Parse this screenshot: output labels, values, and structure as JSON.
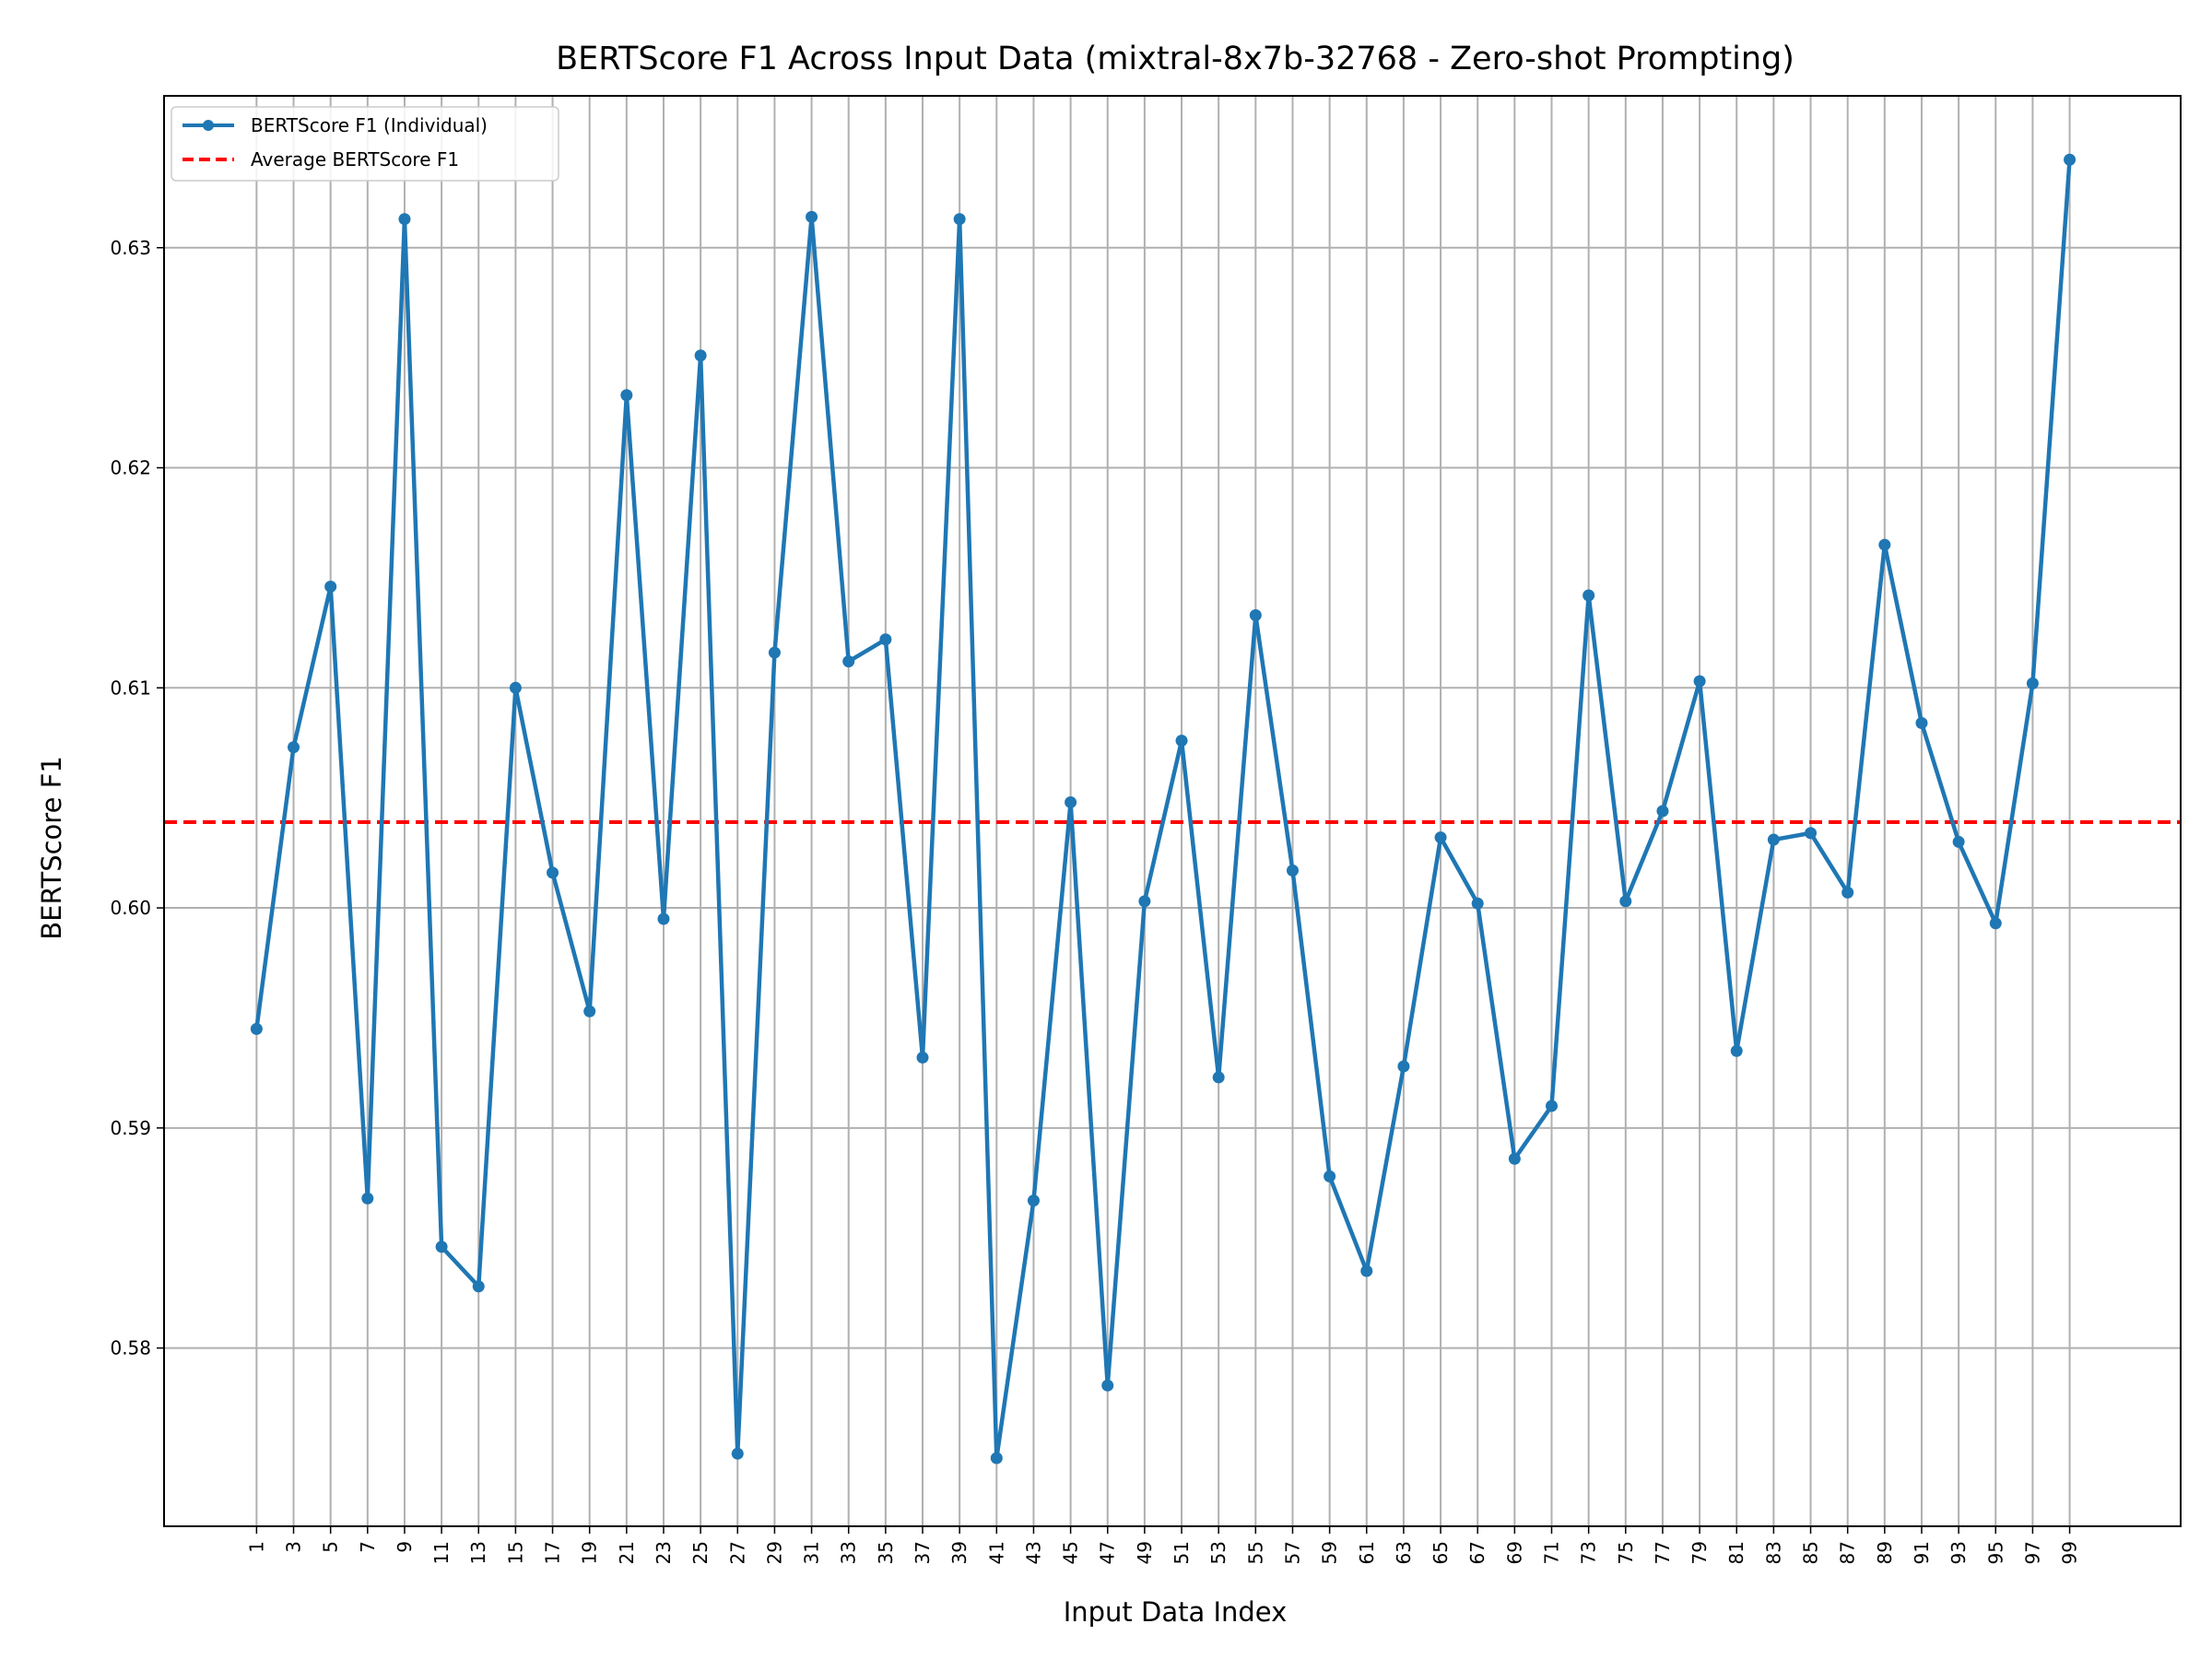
{
  "chart_data": {
    "type": "line",
    "title": "BERTScore F1 Across Input Data (mixtral-8x7b-32768 - Zero-shot Prompting)",
    "xlabel": "Input Data Index",
    "ylabel": "BERTScore F1",
    "x": [
      1,
      3,
      5,
      7,
      9,
      11,
      13,
      15,
      17,
      19,
      21,
      23,
      25,
      27,
      29,
      31,
      33,
      35,
      37,
      39,
      41,
      43,
      45,
      47,
      49,
      51,
      53,
      55,
      57,
      59,
      61,
      63,
      65,
      67,
      69,
      71,
      73,
      75,
      77,
      79,
      81,
      83,
      85,
      87,
      89,
      91,
      93,
      95,
      97,
      99
    ],
    "xticks": [
      "1",
      "3",
      "5",
      "7",
      "9",
      "11",
      "13",
      "15",
      "17",
      "19",
      "21",
      "23",
      "25",
      "27",
      "29",
      "31",
      "33",
      "35",
      "37",
      "39",
      "41",
      "43",
      "45",
      "47",
      "49",
      "51",
      "53",
      "55",
      "57",
      "59",
      "61",
      "63",
      "65",
      "67",
      "69",
      "71",
      "73",
      "75",
      "77",
      "79",
      "81",
      "83",
      "85",
      "87",
      "89",
      "91",
      "93",
      "95",
      "97",
      "99"
    ],
    "yticks": [
      "0.58",
      "0.59",
      "0.60",
      "0.61",
      "0.62",
      "0.63"
    ],
    "ylim": [
      0.5719,
      0.6369
    ],
    "xlim": [
      -4,
      105
    ],
    "series": [
      {
        "name": "BERTScore F1 (Individual)",
        "color": "#1f77b4",
        "values": [
          0.5945,
          0.6073,
          0.6146,
          0.5868,
          0.6313,
          0.5846,
          0.5828,
          0.61,
          0.6016,
          0.5953,
          0.6233,
          0.5995,
          0.6251,
          0.5752,
          0.6116,
          0.6314,
          0.6112,
          0.6122,
          0.5932,
          0.6313,
          0.575,
          0.5867,
          0.6048,
          0.5783,
          0.6003,
          0.6076,
          0.5923,
          0.6133,
          0.6017,
          0.5878,
          0.5835,
          0.5928,
          0.6032,
          0.6002,
          0.5886,
          0.591,
          0.6142,
          0.6003,
          0.6044,
          0.6103,
          0.5935,
          0.6031,
          0.6034,
          0.6007,
          0.6165,
          0.6084,
          0.603,
          0.5993,
          0.6102,
          0.634
        ]
      },
      {
        "name": "Average BERTScore F1",
        "color": "#ff0000",
        "style": "dashed",
        "value": 0.6039
      }
    ],
    "grid": true,
    "legend_position": "top-left"
  }
}
